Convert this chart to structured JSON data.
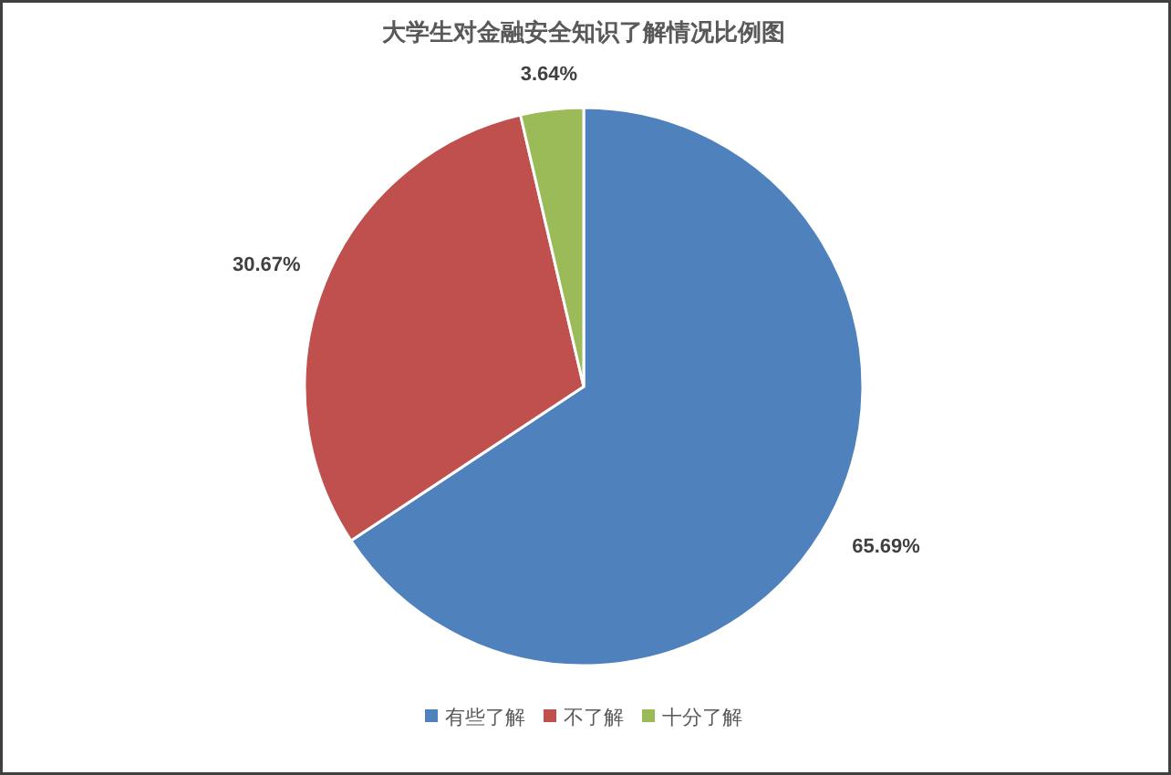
{
  "chart_data": {
    "type": "pie",
    "title": "大学生对金融安全知识了解情况比例图",
    "categories": [
      "有些了解",
      "不了解",
      "十分了解"
    ],
    "values": [
      65.69,
      30.67,
      3.64
    ],
    "colors": [
      "#4f81bd",
      "#c0504d",
      "#9bbb59"
    ],
    "value_labels": [
      "65.69%",
      "30.67%",
      "3.64%"
    ],
    "legend": "bottom"
  }
}
